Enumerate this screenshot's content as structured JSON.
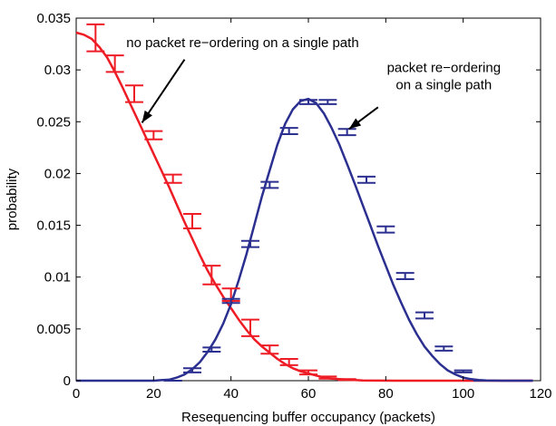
{
  "chart_data": {
    "type": "line",
    "xlabel": "Resequencing buffer occupancy (packets)",
    "ylabel": "probability",
    "xlim": [
      0,
      120
    ],
    "ylim": [
      0,
      0.035
    ],
    "xticks": [
      0,
      20,
      40,
      60,
      80,
      100,
      120
    ],
    "xtick_labels": [
      "0",
      "20",
      "40",
      "60",
      "80",
      "100",
      "120"
    ],
    "yticks": [
      0,
      0.005,
      0.01,
      0.015,
      0.02,
      0.025,
      0.03,
      0.035
    ],
    "ytick_labels": [
      "0",
      "0.005",
      "0.01",
      "0.015",
      "0.02",
      "0.025",
      "0.03",
      "0.035"
    ],
    "grid": false,
    "series": [
      {
        "color": "#ee1c24",
        "curve": {
          "x": [
            0,
            2,
            4,
            6,
            8,
            10,
            12,
            14,
            16,
            18,
            20,
            22,
            24,
            26,
            28,
            30,
            32,
            34,
            36,
            38,
            40,
            42,
            44,
            46,
            48,
            50,
            52,
            54,
            56,
            58,
            60,
            62,
            64,
            66,
            68,
            70,
            72,
            74,
            78,
            82,
            86,
            90,
            100,
            110,
            118
          ],
          "y": [
            0.0336,
            0.0334,
            0.033,
            0.0322,
            0.0312,
            0.0298,
            0.0283,
            0.0267,
            0.0251,
            0.0235,
            0.0219,
            0.0203,
            0.0187,
            0.017,
            0.0153,
            0.0137,
            0.0121,
            0.0106,
            0.0093,
            0.0081,
            0.007,
            0.0059,
            0.0049,
            0.004,
            0.0033,
            0.0027,
            0.0021,
            0.0016,
            0.0012,
            0.0009,
            0.0007,
            0.0005,
            0.0003,
            0.0002,
            0.00015,
            0.0001,
            6e-05,
            3e-05,
            1e-05,
            0.0,
            0.0,
            0.0,
            0.0,
            0.0,
            0.0
          ]
        },
        "errorbars": [
          {
            "x": 5,
            "y": 0.0331,
            "err": 0.0013
          },
          {
            "x": 10,
            "y": 0.0306,
            "err": 0.0008
          },
          {
            "x": 15,
            "y": 0.0277,
            "err": 0.0008
          },
          {
            "x": 20,
            "y": 0.0237,
            "err": 0.0004
          },
          {
            "x": 25,
            "y": 0.0195,
            "err": 0.0004
          },
          {
            "x": 30,
            "y": 0.0154,
            "err": 0.0007
          },
          {
            "x": 35,
            "y": 0.0102,
            "err": 0.0009
          },
          {
            "x": 40,
            "y": 0.0083,
            "err": 0.0006
          },
          {
            "x": 45,
            "y": 0.0051,
            "err": 0.0008
          },
          {
            "x": 50,
            "y": 0.003,
            "err": 0.0004
          },
          {
            "x": 55,
            "y": 0.0018,
            "err": 0.0003
          },
          {
            "x": 60,
            "y": 0.0008,
            "err": 0.0002
          },
          {
            "x": 65,
            "y": 0.0003,
            "err": 0.0001
          },
          {
            "x": 70,
            "y": 0.0001,
            "err": 5e-05
          }
        ]
      },
      {
        "color": "#2b2f8f",
        "curve": {
          "x": [
            0,
            10,
            20,
            22,
            24,
            26,
            28,
            30,
            32,
            34,
            36,
            38,
            40,
            42,
            44,
            46,
            48,
            50,
            52,
            54,
            56,
            58,
            60,
            62,
            64,
            66,
            68,
            70,
            72,
            74,
            76,
            78,
            80,
            82,
            84,
            86,
            88,
            90,
            92,
            94,
            96,
            98,
            100,
            102,
            104,
            106,
            110,
            118
          ],
          "y": [
            0.0,
            0.0,
            0.0,
            5e-05,
            0.0001,
            0.0003,
            0.0006,
            0.0011,
            0.0018,
            0.0028,
            0.004,
            0.0055,
            0.0074,
            0.0097,
            0.0122,
            0.015,
            0.0178,
            0.0203,
            0.0228,
            0.0248,
            0.0262,
            0.027,
            0.0272,
            0.0268,
            0.0258,
            0.0244,
            0.0228,
            0.0209,
            0.019,
            0.017,
            0.015,
            0.013,
            0.0111,
            0.0092,
            0.0075,
            0.0059,
            0.0045,
            0.0033,
            0.0024,
            0.0016,
            0.001,
            0.0006,
            0.0003,
            0.00015,
            6e-05,
            2e-05,
            0.0,
            0.0
          ]
        },
        "errorbars": [
          {
            "x": 25,
            "y": 0.0,
            "err": 0.0
          },
          {
            "x": 30,
            "y": 0.001,
            "err": 0.0002
          },
          {
            "x": 35,
            "y": 0.003,
            "err": 0.0002
          },
          {
            "x": 40,
            "y": 0.0077,
            "err": 0.0002
          },
          {
            "x": 45,
            "y": 0.0132,
            "err": 0.0003
          },
          {
            "x": 50,
            "y": 0.0189,
            "err": 0.0003
          },
          {
            "x": 55,
            "y": 0.0241,
            "err": 0.0003
          },
          {
            "x": 60,
            "y": 0.0269,
            "err": 0.0002
          },
          {
            "x": 65,
            "y": 0.0269,
            "err": 0.0002
          },
          {
            "x": 70,
            "y": 0.024,
            "err": 0.0003
          },
          {
            "x": 75,
            "y": 0.0194,
            "err": 0.0003
          },
          {
            "x": 80,
            "y": 0.0146,
            "err": 0.0003
          },
          {
            "x": 85,
            "y": 0.0101,
            "err": 0.0003
          },
          {
            "x": 90,
            "y": 0.0063,
            "err": 0.0003
          },
          {
            "x": 95,
            "y": 0.0031,
            "err": 0.0002
          },
          {
            "x": 100,
            "y": 0.0009,
            "err": 0.0001
          },
          {
            "x": 105,
            "y": 0.0,
            "err": 0.0
          },
          {
            "x": 110,
            "y": 0.0,
            "err": 0.0
          }
        ]
      }
    ],
    "annotations": [
      {
        "lines": [
          "no packet re−ordering on a single path"
        ],
        "series_index": 0,
        "text_at": [
          43,
          0.0322
        ],
        "arrow_from": [
          28,
          0.031
        ],
        "arrow_to": [
          17,
          0.0249
        ]
      },
      {
        "lines": [
          "packet re−ordering",
          "on a single path"
        ],
        "series_index": 1,
        "text_at": [
          95,
          0.0298
        ],
        "arrow_from": [
          78,
          0.0264
        ],
        "arrow_to": [
          70.5,
          0.0243
        ]
      }
    ]
  }
}
